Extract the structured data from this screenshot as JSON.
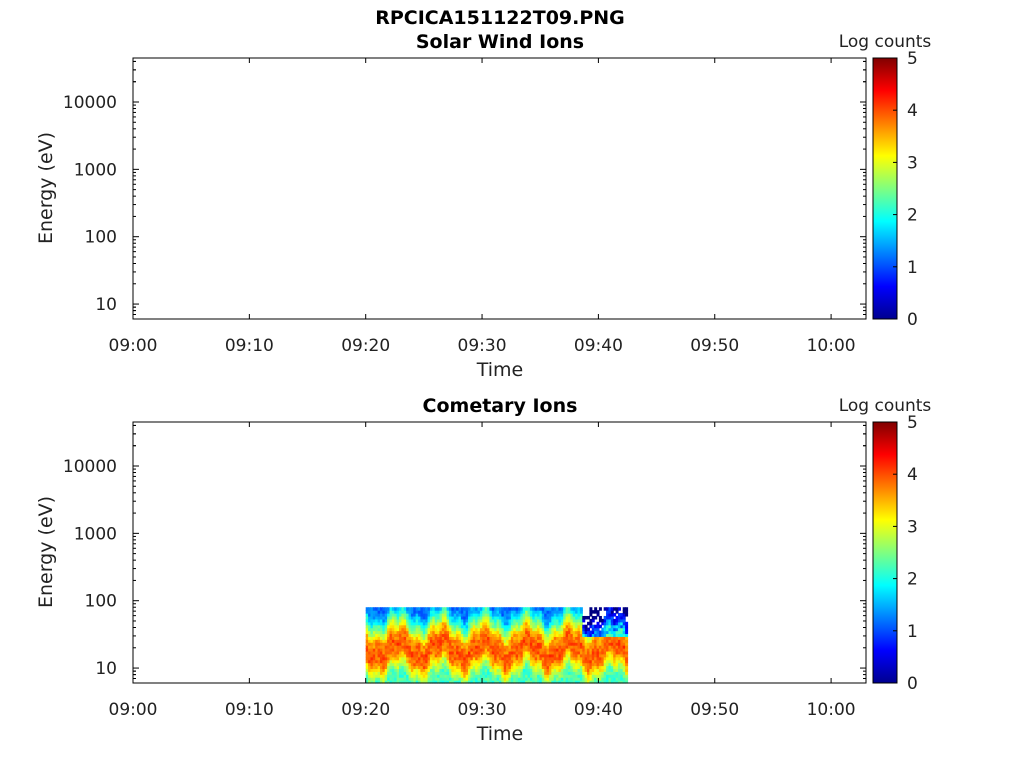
{
  "figure": {
    "title": "RPCICA151122T09.PNG"
  },
  "chart_data": [
    {
      "type": "heatmap",
      "title": "Solar Wind Ions",
      "xlabel": "Time",
      "ylabel": "Energy (eV)",
      "x_tick_labels": [
        "09:00",
        "09:10",
        "09:20",
        "09:30",
        "09:40",
        "09:50",
        "10:00"
      ],
      "x_range_minutes": [
        0,
        63
      ],
      "y_scale": "log",
      "y_range": [
        6,
        45000
      ],
      "y_tick_labels": [
        "10",
        "100",
        "1000",
        "10000"
      ],
      "y_tick_values": [
        10,
        100,
        1000,
        10000
      ],
      "colorbar": {
        "label": "Log counts",
        "range": [
          0,
          5
        ],
        "ticks": [
          "0",
          "1",
          "2",
          "3",
          "4",
          "5"
        ],
        "colormap": "jet"
      },
      "data_extent": null,
      "colors": {
        "axes": "#000000",
        "background": "#ffffff"
      }
    },
    {
      "type": "heatmap",
      "title": "Cometary Ions",
      "xlabel": "Time",
      "ylabel": "Energy (eV)",
      "x_tick_labels": [
        "09:00",
        "09:10",
        "09:20",
        "09:30",
        "09:40",
        "09:50",
        "10:00"
      ],
      "x_range_minutes": [
        0,
        63
      ],
      "y_scale": "log",
      "y_range": [
        6,
        45000
      ],
      "y_tick_labels": [
        "10",
        "100",
        "1000",
        "10000"
      ],
      "y_tick_values": [
        10,
        100,
        1000,
        10000
      ],
      "colorbar": {
        "label": "Log counts",
        "range": [
          0,
          5
        ],
        "ticks": [
          "0",
          "1",
          "2",
          "3",
          "4",
          "5"
        ],
        "colormap": "jet"
      },
      "data_extent": {
        "time_start": "09:20",
        "time_end": "09:42.5",
        "energy_min_eV": 6,
        "energy_max_eV": 80
      },
      "energy_profile_log_counts": [
        {
          "energy_eV": 7,
          "log_counts": 2.2
        },
        {
          "energy_eV": 10,
          "log_counts": 3.0
        },
        {
          "energy_eV": 14,
          "log_counts": 3.8
        },
        {
          "energy_eV": 20,
          "log_counts": 4.0
        },
        {
          "energy_eV": 30,
          "log_counts": 3.6
        },
        {
          "energy_eV": 45,
          "log_counts": 2.5
        },
        {
          "energy_eV": 60,
          "log_counts": 1.8
        },
        {
          "energy_eV": 78,
          "log_counts": 1.2
        }
      ],
      "colors": {
        "axes": "#000000",
        "background": "#ffffff"
      }
    }
  ]
}
